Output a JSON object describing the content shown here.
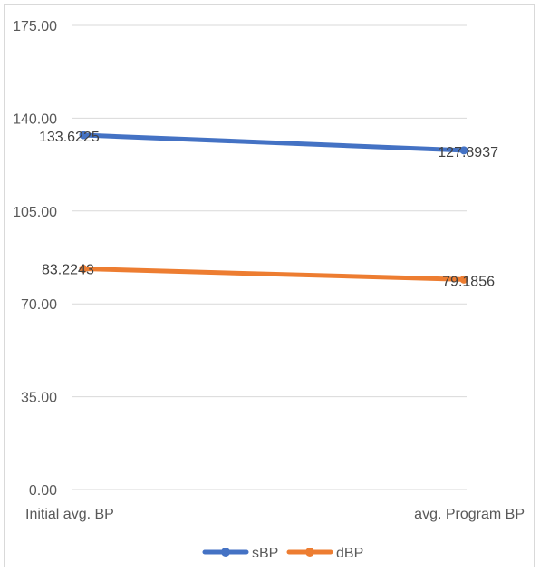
{
  "chart_data": {
    "type": "line",
    "categories": [
      "Initial avg. BP",
      "avg. Program BP"
    ],
    "series": [
      {
        "name": "sBP",
        "values": [
          133.6225,
          127.8937
        ],
        "labels": [
          "133.6225",
          "127.8937"
        ],
        "color": "#4472c4"
      },
      {
        "name": "dBP",
        "values": [
          83.2243,
          79.1856
        ],
        "labels": [
          "83.2243",
          "79.1856"
        ],
        "color": "#ed7d31"
      }
    ],
    "y_ticks": [
      "0.00",
      "35.00",
      "70.00",
      "105.00",
      "140.00",
      "175.00"
    ],
    "ylim": [
      0,
      175
    ],
    "grid": true,
    "legend_position": "bottom",
    "gridline_color": "#d9d9d9"
  }
}
